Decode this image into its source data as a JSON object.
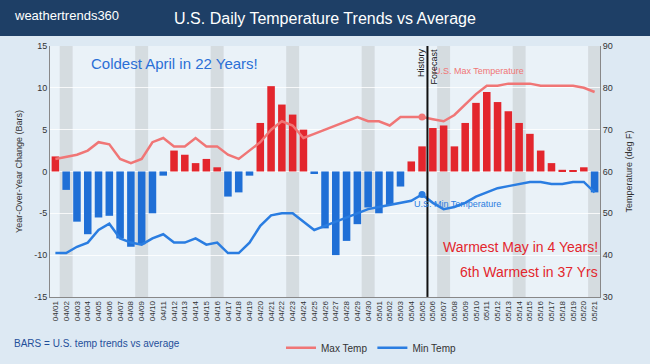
{
  "chart_data": {
    "type": "bar",
    "title": "U.S. Daily Temperature Trends vs Average",
    "logo": "weathertrends360",
    "categories": [
      "04/01",
      "04/02",
      "04/03",
      "04/04",
      "04/05",
      "04/06",
      "04/07",
      "04/08",
      "04/09",
      "04/10",
      "04/11",
      "04/12",
      "04/13",
      "04/14",
      "04/15",
      "04/16",
      "04/17",
      "04/18",
      "04/19",
      "04/20",
      "04/21",
      "04/22",
      "04/23",
      "04/24",
      "04/25",
      "04/26",
      "04/27",
      "04/28",
      "04/29",
      "04/30",
      "05/01",
      "05/02",
      "05/03",
      "05/04",
      "05/05",
      "05/06",
      "05/07",
      "05/08",
      "05/09",
      "05/10",
      "05/11",
      "05/12",
      "05/13",
      "05/14",
      "05/15",
      "05/16",
      "05/17",
      "05/18",
      "05/19",
      "05/20",
      "05/21"
    ],
    "series": [
      {
        "type": "bar",
        "values": [
          1.8,
          -2.2,
          -6,
          -7.5,
          -5.5,
          -5.3,
          -8,
          -9,
          -8.7,
          -5,
          -0.5,
          2.5,
          2,
          1,
          1.5,
          0.5,
          -3,
          -2.5,
          -0.5,
          5.8,
          10.2,
          8,
          6.8,
          5,
          -0.3,
          -6.8,
          -10,
          -8.3,
          -6.3,
          -4.3,
          -5,
          -4,
          -1.8,
          1.2,
          3,
          5.2,
          5.5,
          3,
          5.8,
          8.2,
          9.5,
          8.3,
          7.2,
          5.8,
          4.5,
          2.5,
          1,
          0.2,
          0.1,
          0.5,
          -2.5
        ],
        "colors": [
          "#e3262d",
          "#1f6fd6",
          "#1f6fd6",
          "#1f6fd6",
          "#1f6fd6",
          "#1f6fd6",
          "#1f6fd6",
          "#1f6fd6",
          "#1f6fd6",
          "#1f6fd6",
          "#1f6fd6",
          "#e3262d",
          "#e3262d",
          "#e3262d",
          "#e3262d",
          "#e3262d",
          "#1f6fd6",
          "#1f6fd6",
          "#1f6fd6",
          "#e3262d",
          "#e3262d",
          "#e3262d",
          "#e3262d",
          "#e3262d",
          "#1f6fd6",
          "#1f6fd6",
          "#1f6fd6",
          "#1f6fd6",
          "#1f6fd6",
          "#1f6fd6",
          "#1f6fd6",
          "#1f6fd6",
          "#1f6fd6",
          "#e3262d",
          "#e3262d",
          "#e3262d",
          "#e3262d",
          "#e3262d",
          "#e3262d",
          "#e3262d",
          "#e3262d",
          "#e3262d",
          "#e3262d",
          "#e3262d",
          "#e3262d",
          "#e3262d",
          "#e3262d",
          "#e3262d",
          "#e3262d",
          "#e3262d",
          "#1f6fd6"
        ]
      },
      {
        "name": "Max Temp",
        "type": "line",
        "axis": "y2",
        "color": "#f07676",
        "label": "U.S. Max Temperature",
        "values": [
          63,
          63.5,
          64,
          65,
          67,
          66.5,
          63,
          62,
          63,
          67,
          68,
          66,
          66,
          68,
          66,
          66,
          64,
          63,
          65,
          67,
          70,
          72,
          71,
          68,
          69,
          70,
          71,
          72,
          73,
          72,
          72,
          71,
          73,
          73,
          73,
          72.5,
          72,
          73.5,
          76,
          78.5,
          80.5,
          80.5,
          81,
          81,
          81,
          80.5,
          80.5,
          80.5,
          80.5,
          80,
          79
        ]
      },
      {
        "name": "Min Temp",
        "type": "line",
        "axis": "y2",
        "color": "#2a7de1",
        "label": "U.S. Min Temperature",
        "values": [
          40.5,
          40.5,
          42,
          43,
          46,
          47.5,
          44,
          43,
          42.5,
          44,
          45,
          43,
          43,
          44,
          42.5,
          43,
          40.5,
          40.5,
          43,
          47,
          49.5,
          50,
          50,
          48,
          46,
          47,
          48,
          49,
          50,
          51,
          51.5,
          52,
          52.5,
          53,
          54.5,
          52.5,
          51,
          51.5,
          52.5,
          54,
          55,
          56,
          56.5,
          57,
          57.5,
          57.5,
          57,
          57,
          57.5,
          57.5,
          55
        ]
      }
    ],
    "y_label": "Year-Over-Year Change (Bars)",
    "y2_label": "Temperature (deg F)",
    "ylim": [
      -15,
      15
    ],
    "yticks": [
      -15,
      -10,
      -5,
      0,
      5,
      10,
      15
    ],
    "y2lim": [
      30,
      90
    ],
    "y2ticks": [
      30,
      40,
      50,
      60,
      70,
      80,
      90
    ],
    "grid": true,
    "legend": "bottom",
    "divider": {
      "before": "History",
      "after": "Forecast",
      "at": "05/06"
    },
    "annotations": [
      {
        "text": "Coldest April in 22 Years!",
        "color": "#2a6fd6"
      },
      {
        "text": "Warmest May in 4 Years!",
        "color": "#e3262d"
      },
      {
        "text": "6th Warmest in 37 Yrs",
        "color": "#e3262d"
      },
      {
        "text": "BARS = U.S. temp trends vs average",
        "color": "#1f4f9a"
      }
    ]
  }
}
